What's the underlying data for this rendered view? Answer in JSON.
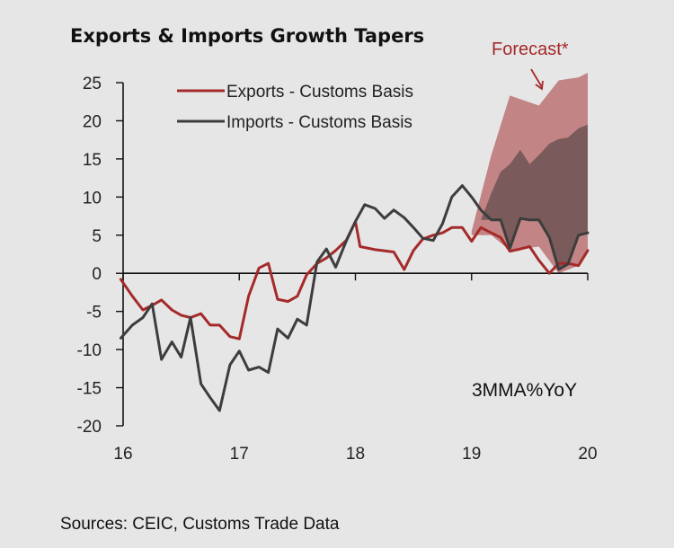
{
  "chart_data": {
    "type": "line",
    "title": "Exports & Imports Growth Tapers",
    "units_label": "3MMA%YoY",
    "annotation": "Forecast*",
    "source": "Sources: CEIC, Customs Trade Data",
    "xlim": [
      16,
      20
    ],
    "ylim": [
      -20,
      25
    ],
    "x_ticks": [
      16,
      17,
      18,
      19,
      20
    ],
    "x_tick_labels": [
      "16",
      "17",
      "18",
      "19",
      "20"
    ],
    "y_ticks": [
      25,
      20,
      15,
      10,
      5,
      0,
      -5,
      -10,
      -15,
      -20
    ],
    "y_tick_labels": [
      "25",
      "20",
      "15",
      "10",
      "5",
      "0",
      "-5",
      "-10",
      "-15",
      "-20"
    ],
    "grid": false,
    "legend_position": "top-center",
    "series": [
      {
        "name": "Exports - Customs Basis",
        "color": "#a52a2a",
        "x": [
          15.98,
          16.08,
          16.17,
          16.25,
          16.33,
          16.42,
          16.5,
          16.58,
          16.67,
          16.75,
          16.83,
          16.92,
          17.0,
          17.08,
          17.17,
          17.25,
          17.33,
          17.42,
          17.5,
          17.58,
          17.67,
          17.75,
          17.83,
          17.92,
          18.0,
          18.04,
          18.17,
          18.33,
          18.42,
          18.5,
          18.58,
          18.67,
          18.75,
          18.83,
          18.92,
          19.0,
          19.08,
          19.17,
          19.25,
          19.33,
          19.42,
          19.5,
          19.58,
          19.67,
          19.75,
          19.83,
          19.92,
          20.0
        ],
        "values": [
          -0.8,
          -3.0,
          -4.8,
          -4.2,
          -3.5,
          -4.8,
          -5.5,
          -5.8,
          -5.3,
          -6.8,
          -6.8,
          -8.3,
          -8.6,
          -3.0,
          0.7,
          1.3,
          -3.4,
          -3.7,
          -3.0,
          -0.2,
          1.3,
          2.0,
          3.0,
          4.3,
          6.8,
          3.5,
          3.1,
          2.8,
          0.5,
          3.0,
          4.5,
          5.0,
          5.3,
          6.0,
          6.0,
          4.2,
          6.0,
          5.3,
          4.7,
          2.9,
          3.2,
          3.5,
          1.7,
          0.0,
          1.3,
          1.3,
          1.0,
          3.0
        ]
      },
      {
        "name": "Imports - Customs Basis",
        "color": "#3d3d3d",
        "x": [
          15.98,
          16.08,
          16.17,
          16.25,
          16.33,
          16.42,
          16.5,
          16.58,
          16.67,
          16.75,
          16.83,
          16.92,
          17.0,
          17.08,
          17.17,
          17.25,
          17.33,
          17.42,
          17.5,
          17.58,
          17.67,
          17.75,
          17.83,
          17.92,
          18.0,
          18.08,
          18.17,
          18.25,
          18.33,
          18.42,
          18.5,
          18.58,
          18.67,
          18.75,
          18.83,
          18.92,
          19.0,
          19.08,
          19.17,
          19.25,
          19.33,
          19.42,
          19.5,
          19.58,
          19.67,
          19.75,
          19.83,
          19.92,
          20.0
        ],
        "values": [
          -8.5,
          -6.8,
          -5.8,
          -4.0,
          -11.3,
          -9.0,
          -11.0,
          -5.8,
          -14.5,
          -16.3,
          -18.0,
          -12.0,
          -10.2,
          -12.7,
          -12.3,
          -13.0,
          -7.3,
          -8.5,
          -6.0,
          -6.8,
          1.5,
          3.2,
          0.8,
          4.2,
          6.8,
          9.0,
          8.5,
          7.2,
          8.3,
          7.3,
          6.0,
          4.6,
          4.3,
          6.5,
          10.0,
          11.5,
          10.0,
          8.3,
          7.0,
          7.0,
          3.3,
          7.2,
          7.0,
          7.0,
          4.7,
          0.5,
          1.2,
          5.0,
          5.3
        ]
      }
    ],
    "forecast_bands": [
      {
        "name": "Exports forecast range",
        "color": "#c28484",
        "x": [
          19.0,
          19.17,
          19.33,
          19.58,
          19.75,
          19.92,
          20.0
        ],
        "upper": [
          5.5,
          15.5,
          23.3,
          22.0,
          25.3,
          25.7,
          26.3
        ],
        "lower": [
          5.0,
          5.0,
          3.0,
          3.5,
          0.0,
          1.0,
          3.0
        ]
      },
      {
        "name": "Imports forecast range",
        "color": "#7a5a5a",
        "x": [
          19.08,
          19.17,
          19.25,
          19.33,
          19.42,
          19.5,
          19.58,
          19.67,
          19.75,
          19.83,
          19.92,
          20.0
        ],
        "upper": [
          7.0,
          10.5,
          13.3,
          14.3,
          16.2,
          14.3,
          15.5,
          17.0,
          17.6,
          17.8,
          19.0,
          19.5
        ],
        "lower": [
          7.0,
          7.0,
          7.0,
          3.3,
          7.2,
          7.0,
          7.0,
          4.7,
          0.5,
          1.2,
          5.0,
          5.3
        ]
      }
    ]
  }
}
